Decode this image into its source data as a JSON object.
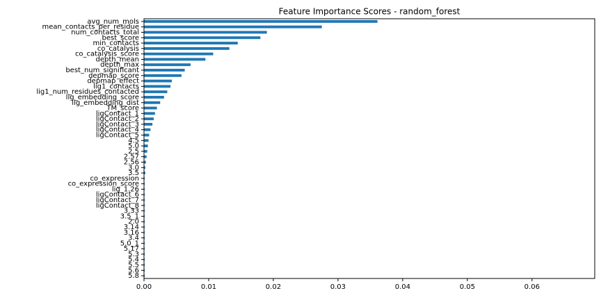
{
  "chart_data": {
    "type": "barh",
    "title": "Feature Importance Scores - random_forest",
    "categories": [
      "avg_num_mols",
      "mean_contacts_per_residue",
      "num_contacts_total",
      "best_score",
      "min_contacts",
      "co_catalysis",
      "co_catalysis_score",
      "depth_mean",
      "depth_max",
      "best_num_significant",
      "depmap_score",
      "depmap_effect",
      "lig1_contacts",
      "lig1_num_residues_contacted",
      "lig_embedding_score",
      "lig_embedding_dist",
      "TM_score",
      "ligContact_1",
      "ligContact_2",
      "ligContact_3",
      "ligContact_4",
      "ligContact_5",
      "4.5",
      "5.0",
      "2.5",
      "2.57",
      "2.56",
      "3.0",
      "3.5",
      "co_expression",
      "co_expression_score",
      "lig_1.26",
      "ligContact_6",
      "ligContact_7",
      "ligContact_8",
      "3.33",
      "3.5_1",
      "2.0",
      "3.14",
      "3.16",
      "3.4",
      "5.0_1",
      "5.17",
      "5.3",
      "5.4",
      "5.5",
      "5.6",
      "5.8"
    ],
    "values": [
      0.0361,
      0.0275,
      0.019,
      0.018,
      0.0145,
      0.0132,
      0.0107,
      0.0095,
      0.0072,
      0.0063,
      0.0058,
      0.0043,
      0.0041,
      0.0036,
      0.0031,
      0.0025,
      0.002,
      0.0017,
      0.0015,
      0.0013,
      0.001,
      0.0008,
      0.0007,
      0.0006,
      0.0005,
      0.0004,
      0.0003,
      0.0002,
      0.0002,
      0.0001,
      0.0001,
      0.0001,
      0.0001,
      0.0001,
      0.0001,
      0.0001,
      0.0001,
      0.0001,
      0.0001,
      0.0001,
      0.0001,
      0.0001,
      0.0001,
      0.0001,
      0.0001,
      0.0001,
      0.0001,
      0.0001
    ],
    "color": "#1f77b4",
    "xlim": [
      0,
      0.0697
    ],
    "xticks": [
      {
        "value": 0,
        "label": "0.00"
      },
      {
        "value": 0.01,
        "label": "0.01"
      },
      {
        "value": 0.02,
        "label": "0.02"
      },
      {
        "value": 0.03,
        "label": "0.03"
      },
      {
        "value": 0.04,
        "label": "0.04"
      },
      {
        "value": 0.05,
        "label": "0.05"
      },
      {
        "value": 0.06,
        "label": "0.06"
      }
    ]
  }
}
